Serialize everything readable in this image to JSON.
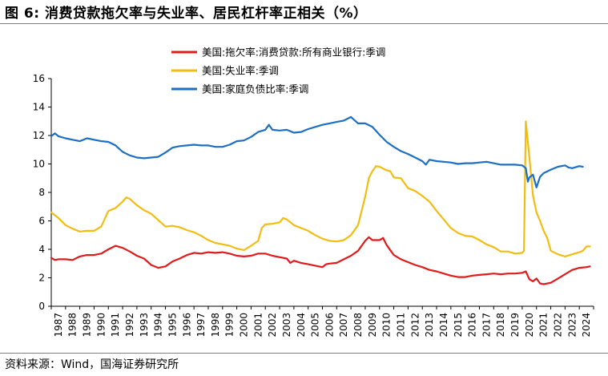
{
  "figure_title": "图 6:  消费贷款拖欠率与失业率、居民杠杆率正相关（%）",
  "source_note": "资料来源：Wind，国海证券研究所",
  "chart_data": {
    "type": "line",
    "title": "图 6:  消费贷款拖欠率与失业率、居民杠杆率正相关（%）",
    "xlabel": "",
    "ylabel": "",
    "xlim": [
      1987.0,
      2025.0
    ],
    "ylim": [
      0,
      16
    ],
    "yticks": [
      0,
      2,
      4,
      6,
      8,
      10,
      12,
      14,
      16
    ],
    "xtick_labels": [
      "1987",
      "1988",
      "1989",
      "1990",
      "1991",
      "1992",
      "1993",
      "1994",
      "1995",
      "1996",
      "1997",
      "1998",
      "1999",
      "2000",
      "2001",
      "2002",
      "2003",
      "2004",
      "2005",
      "2006",
      "2007",
      "2008",
      "2009",
      "2010",
      "2011",
      "2012",
      "2013",
      "2014",
      "2015",
      "2016",
      "2017",
      "2018",
      "2019",
      "2020",
      "2021",
      "2022",
      "2023",
      "2024"
    ],
    "grid": false,
    "legend_position": "top-center",
    "series": [
      {
        "name": "美国:拖欠率:消费贷款:所有商业银行:季调",
        "color": "#e01b1b",
        "points": [
          [
            1987.0,
            3.4
          ],
          [
            1987.25,
            3.25
          ],
          [
            1987.5,
            3.3
          ],
          [
            1988.0,
            3.3
          ],
          [
            1988.5,
            3.25
          ],
          [
            1989.0,
            3.5
          ],
          [
            1989.5,
            3.6
          ],
          [
            1990.0,
            3.6
          ],
          [
            1990.5,
            3.7
          ],
          [
            1991.0,
            4.0
          ],
          [
            1991.5,
            4.25
          ],
          [
            1992.0,
            4.1
          ],
          [
            1992.5,
            3.85
          ],
          [
            1993.0,
            3.55
          ],
          [
            1993.5,
            3.35
          ],
          [
            1994.0,
            2.9
          ],
          [
            1994.5,
            2.7
          ],
          [
            1995.0,
            2.8
          ],
          [
            1995.5,
            3.15
          ],
          [
            1996.0,
            3.35
          ],
          [
            1996.5,
            3.6
          ],
          [
            1997.0,
            3.75
          ],
          [
            1997.5,
            3.7
          ],
          [
            1998.0,
            3.8
          ],
          [
            1998.5,
            3.75
          ],
          [
            1999.0,
            3.8
          ],
          [
            1999.5,
            3.7
          ],
          [
            2000.0,
            3.55
          ],
          [
            2000.5,
            3.5
          ],
          [
            2001.0,
            3.55
          ],
          [
            2001.5,
            3.7
          ],
          [
            2002.0,
            3.7
          ],
          [
            2002.5,
            3.55
          ],
          [
            2003.0,
            3.45
          ],
          [
            2003.5,
            3.35
          ],
          [
            2003.75,
            3.05
          ],
          [
            2004.0,
            3.2
          ],
          [
            2004.5,
            3.05
          ],
          [
            2005.0,
            2.95
          ],
          [
            2005.5,
            2.85
          ],
          [
            2006.0,
            2.75
          ],
          [
            2006.25,
            2.95
          ],
          [
            2006.5,
            3.0
          ],
          [
            2007.0,
            3.05
          ],
          [
            2007.5,
            3.3
          ],
          [
            2008.0,
            3.55
          ],
          [
            2008.5,
            3.9
          ],
          [
            2009.0,
            4.6
          ],
          [
            2009.25,
            4.85
          ],
          [
            2009.5,
            4.65
          ],
          [
            2010.0,
            4.65
          ],
          [
            2010.25,
            4.8
          ],
          [
            2010.5,
            4.3
          ],
          [
            2011.0,
            3.6
          ],
          [
            2011.5,
            3.3
          ],
          [
            2012.0,
            3.1
          ],
          [
            2012.5,
            2.9
          ],
          [
            2013.0,
            2.75
          ],
          [
            2013.5,
            2.55
          ],
          [
            2014.0,
            2.45
          ],
          [
            2014.5,
            2.3
          ],
          [
            2015.0,
            2.15
          ],
          [
            2015.5,
            2.05
          ],
          [
            2016.0,
            2.05
          ],
          [
            2016.5,
            2.15
          ],
          [
            2017.0,
            2.2
          ],
          [
            2017.5,
            2.25
          ],
          [
            2018.0,
            2.3
          ],
          [
            2018.5,
            2.25
          ],
          [
            2019.0,
            2.3
          ],
          [
            2019.5,
            2.3
          ],
          [
            2020.0,
            2.35
          ],
          [
            2020.25,
            2.45
          ],
          [
            2020.5,
            1.9
          ],
          [
            2020.75,
            1.75
          ],
          [
            2021.0,
            1.95
          ],
          [
            2021.25,
            1.6
          ],
          [
            2021.5,
            1.55
          ],
          [
            2022.0,
            1.65
          ],
          [
            2022.5,
            1.95
          ],
          [
            2023.0,
            2.25
          ],
          [
            2023.5,
            2.55
          ],
          [
            2024.0,
            2.7
          ],
          [
            2024.5,
            2.75
          ],
          [
            2024.75,
            2.8
          ]
        ]
      },
      {
        "name": "美国:失业率:季调",
        "color": "#f2bd13",
        "points": [
          [
            1987.0,
            6.6
          ],
          [
            1987.5,
            6.2
          ],
          [
            1988.0,
            5.7
          ],
          [
            1988.5,
            5.45
          ],
          [
            1989.0,
            5.25
          ],
          [
            1989.5,
            5.3
          ],
          [
            1990.0,
            5.3
          ],
          [
            1990.5,
            5.6
          ],
          [
            1991.0,
            6.7
          ],
          [
            1991.5,
            6.9
          ],
          [
            1992.0,
            7.35
          ],
          [
            1992.25,
            7.65
          ],
          [
            1992.5,
            7.55
          ],
          [
            1993.0,
            7.1
          ],
          [
            1993.5,
            6.75
          ],
          [
            1994.0,
            6.5
          ],
          [
            1994.5,
            6.05
          ],
          [
            1995.0,
            5.6
          ],
          [
            1995.5,
            5.65
          ],
          [
            1996.0,
            5.55
          ],
          [
            1996.5,
            5.35
          ],
          [
            1997.0,
            5.2
          ],
          [
            1997.5,
            4.95
          ],
          [
            1998.0,
            4.65
          ],
          [
            1998.5,
            4.45
          ],
          [
            1999.0,
            4.35
          ],
          [
            1999.5,
            4.25
          ],
          [
            2000.0,
            4.05
          ],
          [
            2000.5,
            3.95
          ],
          [
            2001.0,
            4.25
          ],
          [
            2001.5,
            4.6
          ],
          [
            2001.75,
            5.5
          ],
          [
            2002.0,
            5.75
          ],
          [
            2002.5,
            5.8
          ],
          [
            2003.0,
            5.9
          ],
          [
            2003.25,
            6.2
          ],
          [
            2003.5,
            6.1
          ],
          [
            2004.0,
            5.7
          ],
          [
            2004.5,
            5.5
          ],
          [
            2005.0,
            5.3
          ],
          [
            2005.5,
            5.0
          ],
          [
            2006.0,
            4.75
          ],
          [
            2006.5,
            4.6
          ],
          [
            2007.0,
            4.55
          ],
          [
            2007.5,
            4.65
          ],
          [
            2008.0,
            5.0
          ],
          [
            2008.5,
            5.7
          ],
          [
            2009.0,
            7.7
          ],
          [
            2009.25,
            9.0
          ],
          [
            2009.5,
            9.5
          ],
          [
            2009.75,
            9.85
          ],
          [
            2010.0,
            9.8
          ],
          [
            2010.5,
            9.55
          ],
          [
            2010.75,
            9.5
          ],
          [
            2011.0,
            9.05
          ],
          [
            2011.5,
            9.0
          ],
          [
            2012.0,
            8.3
          ],
          [
            2012.5,
            8.1
          ],
          [
            2013.0,
            7.75
          ],
          [
            2013.5,
            7.35
          ],
          [
            2014.0,
            6.7
          ],
          [
            2014.5,
            6.1
          ],
          [
            2015.0,
            5.5
          ],
          [
            2015.5,
            5.15
          ],
          [
            2016.0,
            4.95
          ],
          [
            2016.5,
            4.9
          ],
          [
            2017.0,
            4.65
          ],
          [
            2017.5,
            4.35
          ],
          [
            2018.0,
            4.15
          ],
          [
            2018.5,
            3.85
          ],
          [
            2019.0,
            3.85
          ],
          [
            2019.5,
            3.7
          ],
          [
            2020.0,
            3.75
          ],
          [
            2020.12,
            3.9
          ],
          [
            2020.25,
            13.0
          ],
          [
            2020.5,
            10.5
          ],
          [
            2020.75,
            7.8
          ],
          [
            2021.0,
            6.6
          ],
          [
            2021.25,
            6.0
          ],
          [
            2021.5,
            5.3
          ],
          [
            2021.75,
            4.8
          ],
          [
            2022.0,
            3.9
          ],
          [
            2022.5,
            3.65
          ],
          [
            2023.0,
            3.5
          ],
          [
            2023.5,
            3.65
          ],
          [
            2024.0,
            3.8
          ],
          [
            2024.25,
            3.9
          ],
          [
            2024.5,
            4.2
          ],
          [
            2024.75,
            4.2
          ]
        ]
      },
      {
        "name": "美国:家庭负债比率:季调",
        "color": "#1c6fc2",
        "points": [
          [
            1987.0,
            11.95
          ],
          [
            1987.25,
            12.15
          ],
          [
            1987.5,
            11.95
          ],
          [
            1988.0,
            11.8
          ],
          [
            1988.5,
            11.7
          ],
          [
            1989.0,
            11.6
          ],
          [
            1989.5,
            11.8
          ],
          [
            1990.0,
            11.7
          ],
          [
            1990.5,
            11.6
          ],
          [
            1991.0,
            11.55
          ],
          [
            1991.5,
            11.3
          ],
          [
            1992.0,
            10.85
          ],
          [
            1992.5,
            10.6
          ],
          [
            1993.0,
            10.45
          ],
          [
            1993.5,
            10.4
          ],
          [
            1994.0,
            10.45
          ],
          [
            1994.5,
            10.5
          ],
          [
            1995.0,
            10.8
          ],
          [
            1995.5,
            11.15
          ],
          [
            1996.0,
            11.25
          ],
          [
            1996.5,
            11.3
          ],
          [
            1997.0,
            11.35
          ],
          [
            1997.5,
            11.3
          ],
          [
            1998.0,
            11.3
          ],
          [
            1998.5,
            11.2
          ],
          [
            1999.0,
            11.2
          ],
          [
            1999.5,
            11.35
          ],
          [
            2000.0,
            11.6
          ],
          [
            2000.5,
            11.65
          ],
          [
            2001.0,
            11.9
          ],
          [
            2001.5,
            12.25
          ],
          [
            2002.0,
            12.4
          ],
          [
            2002.25,
            12.75
          ],
          [
            2002.5,
            12.4
          ],
          [
            2003.0,
            12.35
          ],
          [
            2003.5,
            12.4
          ],
          [
            2004.0,
            12.2
          ],
          [
            2004.5,
            12.25
          ],
          [
            2005.0,
            12.45
          ],
          [
            2005.5,
            12.6
          ],
          [
            2006.0,
            12.75
          ],
          [
            2006.5,
            12.85
          ],
          [
            2007.0,
            12.95
          ],
          [
            2007.5,
            13.05
          ],
          [
            2008.0,
            13.3
          ],
          [
            2008.5,
            12.85
          ],
          [
            2009.0,
            12.85
          ],
          [
            2009.5,
            12.6
          ],
          [
            2010.0,
            12.05
          ],
          [
            2010.5,
            11.55
          ],
          [
            2011.0,
            11.2
          ],
          [
            2011.5,
            10.9
          ],
          [
            2012.0,
            10.7
          ],
          [
            2012.5,
            10.45
          ],
          [
            2013.0,
            10.2
          ],
          [
            2013.25,
            9.95
          ],
          [
            2013.5,
            10.3
          ],
          [
            2014.0,
            10.2
          ],
          [
            2014.5,
            10.15
          ],
          [
            2015.0,
            10.1
          ],
          [
            2015.5,
            10.0
          ],
          [
            2016.0,
            10.05
          ],
          [
            2016.5,
            10.05
          ],
          [
            2017.0,
            10.1
          ],
          [
            2017.5,
            10.15
          ],
          [
            2018.0,
            10.05
          ],
          [
            2018.5,
            9.95
          ],
          [
            2019.0,
            9.95
          ],
          [
            2019.5,
            9.95
          ],
          [
            2020.0,
            9.9
          ],
          [
            2020.25,
            9.7
          ],
          [
            2020.4,
            8.75
          ],
          [
            2020.5,
            9.05
          ],
          [
            2020.75,
            9.25
          ],
          [
            2021.0,
            8.35
          ],
          [
            2021.25,
            9.1
          ],
          [
            2021.5,
            9.35
          ],
          [
            2022.0,
            9.6
          ],
          [
            2022.5,
            9.8
          ],
          [
            2023.0,
            9.9
          ],
          [
            2023.25,
            9.75
          ],
          [
            2023.5,
            9.7
          ],
          [
            2024.0,
            9.85
          ],
          [
            2024.25,
            9.8
          ]
        ]
      }
    ]
  }
}
